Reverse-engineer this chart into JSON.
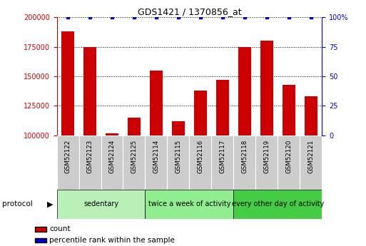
{
  "title": "GDS1421 / 1370856_at",
  "samples": [
    "GSM52122",
    "GSM52123",
    "GSM52124",
    "GSM52125",
    "GSM52114",
    "GSM52115",
    "GSM52116",
    "GSM52117",
    "GSM52118",
    "GSM52119",
    "GSM52120",
    "GSM52121"
  ],
  "counts": [
    188000,
    175000,
    101500,
    115000,
    155000,
    112000,
    138000,
    147000,
    175000,
    180000,
    143000,
    133000
  ],
  "percentile_ranks": [
    100,
    100,
    100,
    100,
    100,
    100,
    100,
    100,
    100,
    100,
    100,
    100
  ],
  "groups": [
    {
      "label": "sedentary",
      "start": 0,
      "end": 4,
      "color": "#b8f0b8"
    },
    {
      "label": "twice a week of activity",
      "start": 4,
      "end": 8,
      "color": "#90ee90"
    },
    {
      "label": "every other day of activity",
      "start": 8,
      "end": 12,
      "color": "#44cc44"
    }
  ],
  "ylim_left": [
    100000,
    200000
  ],
  "ylim_right": [
    0,
    100
  ],
  "yticks_left": [
    100000,
    125000,
    150000,
    175000,
    200000
  ],
  "yticks_right": [
    0,
    25,
    50,
    75,
    100
  ],
  "bar_color": "#cc0000",
  "dot_color": "#0000cc",
  "bg_color": "#ffffff",
  "xtick_bg_color": "#cccccc",
  "legend_count_color": "#cc0000",
  "legend_percentile_color": "#0000cc",
  "protocol_label": "protocol",
  "figsize": [
    5.13,
    3.45
  ],
  "dpi": 100
}
